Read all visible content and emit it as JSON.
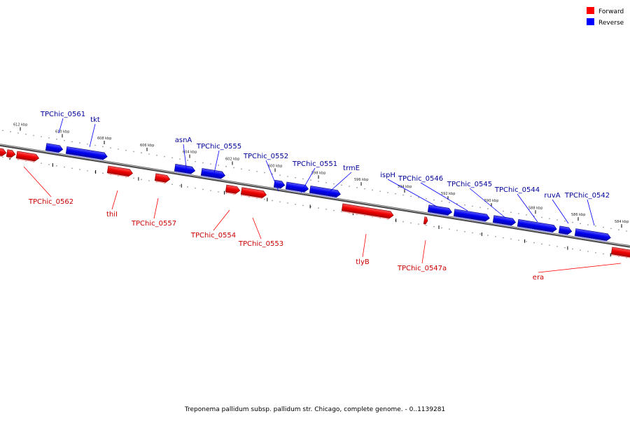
{
  "colors": {
    "forward": "#ff0000",
    "reverse": "#0000ff",
    "forward_label": "#cc0000",
    "reverse_label": "#000099",
    "backbone": "#8a8a8a"
  },
  "legend": {
    "forward_label": "Forward",
    "reverse_label": "Reverse"
  },
  "footer": {
    "caption": "Treponema pallidum subsp. pallidum str. Chicago, complete genome. - 0..1139281"
  },
  "scale_ticks": [
    "612 kbp",
    "610 kbp",
    "608 kbp",
    "606 kbp",
    "604 kbp",
    "602 kbp",
    "600 kbp",
    "598 kbp",
    "596 kbp",
    "594 kbp",
    "592 kbp",
    "590 kbp",
    "588 kbp",
    "586 kbp",
    "584 kbp"
  ],
  "genes": {
    "reverse": [
      {
        "label": "TPChic_0561"
      },
      {
        "label": "tkt"
      },
      {
        "label": "asnA"
      },
      {
        "label": "TPChic_0555"
      },
      {
        "label": "TPChic_0552"
      },
      {
        "label": "TPChic_0551"
      },
      {
        "label": "trmE"
      },
      {
        "label": "ispH"
      },
      {
        "label": "TPChic_0546"
      },
      {
        "label": "TPChic_0545"
      },
      {
        "label": "TPChic_0544"
      },
      {
        "label": "ruvA"
      },
      {
        "label": "TPChic_0542"
      }
    ],
    "forward": [
      {
        "label": "TPChic_0562"
      },
      {
        "label": "thiI"
      },
      {
        "label": "TPChic_0557"
      },
      {
        "label": "TPChic_0554"
      },
      {
        "label": "TPChic_0553"
      },
      {
        "label": "tlyB"
      },
      {
        "label": "TPChic_0547a"
      },
      {
        "label": "era"
      }
    ]
  }
}
